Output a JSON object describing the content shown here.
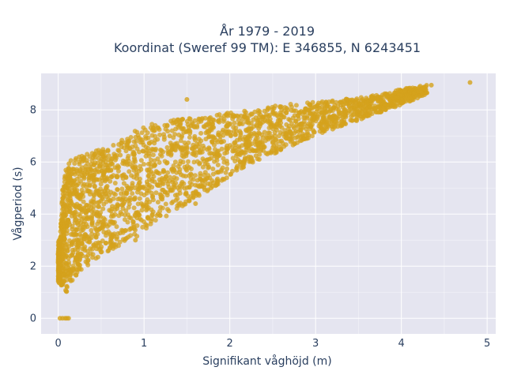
{
  "chart_data": {
    "type": "scatter",
    "title_line1": "År 1979 - 2019",
    "title_line2": "Koordinat (Sweref 99 TM): E 346855, N 6243451",
    "xlabel": "Signifikant våghöjd (m)",
    "ylabel": "Vågperiod (s)",
    "xlim": [
      -0.2,
      5.1
    ],
    "ylim": [
      -0.6,
      9.4
    ],
    "xticks": [
      0,
      1,
      2,
      3,
      4,
      5
    ],
    "yticks": [
      0,
      2,
      4,
      6,
      8
    ],
    "xtick_labels": [
      "0",
      "1",
      "2",
      "3",
      "4",
      "5"
    ],
    "ytick_labels": [
      "0",
      "2",
      "4",
      "6",
      "8"
    ],
    "grid": true,
    "legend": "none",
    "colors": {
      "marker": "#d4a21c",
      "plot_bg": "#e5e5f0",
      "grid": "#ffffff",
      "text": "#2a3f5f"
    },
    "series": [
      {
        "points_description": "dense cloud; upper envelope / lower envelope sampled",
        "upper_envelope": [
          [
            0.02,
            3.0
          ],
          [
            0.05,
            5.0
          ],
          [
            0.1,
            6.0
          ],
          [
            0.3,
            6.3
          ],
          [
            0.5,
            6.5
          ],
          [
            0.8,
            7.0
          ],
          [
            1.0,
            7.4
          ],
          [
            1.3,
            7.6
          ],
          [
            1.6,
            7.7
          ],
          [
            2.0,
            7.9
          ],
          [
            2.3,
            8.0
          ],
          [
            2.6,
            8.2
          ],
          [
            3.0,
            8.3
          ],
          [
            3.3,
            8.4
          ],
          [
            3.6,
            8.5
          ],
          [
            4.0,
            8.8
          ],
          [
            4.35,
            9.0
          ]
        ],
        "lower_envelope": [
          [
            0.0,
            1.4
          ],
          [
            0.05,
            1.2
          ],
          [
            0.1,
            1.0
          ],
          [
            0.2,
            1.6
          ],
          [
            0.4,
            2.2
          ],
          [
            0.6,
            2.6
          ],
          [
            0.8,
            2.9
          ],
          [
            1.0,
            3.3
          ],
          [
            1.2,
            3.8
          ],
          [
            1.5,
            4.4
          ],
          [
            1.8,
            5.0
          ],
          [
            2.1,
            5.7
          ],
          [
            2.5,
            6.3
          ],
          [
            3.0,
            7.0
          ],
          [
            3.5,
            7.6
          ],
          [
            4.0,
            8.2
          ],
          [
            4.3,
            8.6
          ]
        ],
        "notable_points": [
          [
            0.02,
            0.0
          ],
          [
            0.05,
            0.0
          ],
          [
            0.08,
            0.0
          ],
          [
            0.1,
            0.0
          ],
          [
            0.12,
            0.0
          ],
          [
            1.5,
            8.4
          ],
          [
            4.8,
            9.05
          ],
          [
            4.35,
            8.95
          ],
          [
            4.25,
            8.85
          ],
          [
            1.3,
            7.0
          ],
          [
            1.6,
            4.4
          ],
          [
            0.9,
            3.0
          ]
        ]
      }
    ]
  }
}
